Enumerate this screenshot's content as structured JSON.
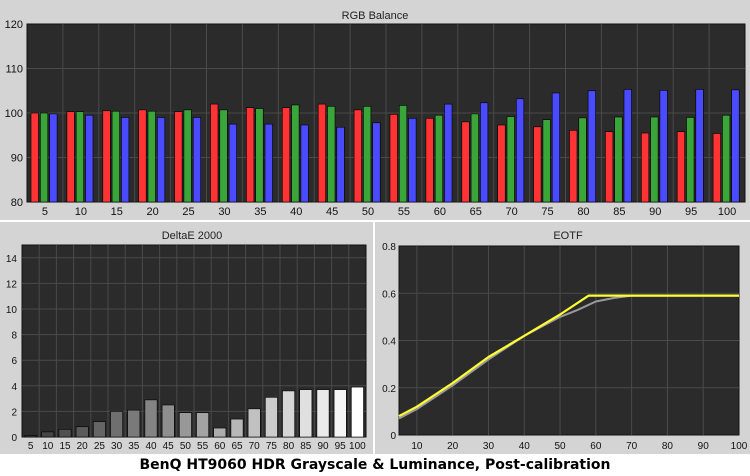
{
  "caption": "BenQ HT9060 HDR Grayscale & Luminance, Post-calibration",
  "colors": {
    "red": "#ff3333",
    "green": "#3aa63a",
    "blue": "#4a4aff",
    "plot_bg": "#2b2b2b",
    "eotf_target": "#9a9a9a",
    "eotf_measured": "#ffff33"
  },
  "chart_data": [
    {
      "type": "bar",
      "title": "RGB Balance",
      "categories": [
        "5",
        "10",
        "15",
        "20",
        "25",
        "30",
        "35",
        "40",
        "45",
        "50",
        "55",
        "60",
        "65",
        "70",
        "75",
        "80",
        "85",
        "90",
        "95",
        "100"
      ],
      "ylim": [
        80,
        120
      ],
      "yticks": [
        "80",
        "90",
        "100",
        "110",
        "120"
      ],
      "grid": true,
      "series": [
        {
          "color": "red",
          "values": [
            100.0,
            100.3,
            100.5,
            100.7,
            100.3,
            102.0,
            101.2,
            101.2,
            102.0,
            100.7,
            99.7,
            98.8,
            98.0,
            97.3,
            96.9,
            96.1,
            95.8,
            95.5,
            95.8,
            95.4
          ]
        },
        {
          "color": "green",
          "values": [
            100.0,
            100.3,
            100.4,
            100.4,
            100.7,
            100.7,
            101.0,
            101.8,
            101.5,
            101.5,
            101.7,
            99.5,
            99.8,
            99.2,
            98.5,
            98.9,
            99.1,
            99.1,
            99.0,
            99.5
          ]
        },
        {
          "color": "blue",
          "values": [
            99.8,
            99.5,
            99.0,
            99.0,
            99.0,
            97.5,
            97.5,
            97.3,
            96.8,
            97.8,
            98.8,
            102.0,
            102.3,
            103.2,
            104.5,
            105.0,
            105.3,
            105.1,
            105.3,
            105.2
          ]
        }
      ]
    },
    {
      "type": "bar",
      "title": "DeltaE 2000",
      "categories": [
        "5",
        "10",
        "15",
        "20",
        "25",
        "30",
        "35",
        "40",
        "45",
        "50",
        "55",
        "60",
        "65",
        "70",
        "75",
        "80",
        "85",
        "90",
        "95",
        "100"
      ],
      "ylim": [
        0,
        15
      ],
      "yticks": [
        "0",
        "2",
        "4",
        "6",
        "8",
        "10",
        "12",
        "14"
      ],
      "grid": true,
      "values": [
        0.1,
        0.4,
        0.6,
        0.8,
        1.2,
        2.0,
        2.1,
        2.9,
        2.5,
        1.9,
        1.9,
        0.7,
        1.4,
        2.2,
        3.1,
        3.6,
        3.7,
        3.7,
        3.7,
        3.9
      ]
    },
    {
      "type": "line",
      "title": "EOTF",
      "xlim": [
        5,
        100
      ],
      "ylim": [
        0,
        0.8
      ],
      "xticks": [
        "10",
        "20",
        "30",
        "40",
        "50",
        "60",
        "70",
        "80",
        "90",
        "100"
      ],
      "yticks": [
        "0",
        "0.2",
        "0.4",
        "0.6",
        "0.8"
      ],
      "grid": true,
      "series": [
        {
          "color": "eotf_target",
          "x": [
            5,
            10,
            20,
            30,
            40,
            50,
            55,
            60,
            65,
            70,
            80,
            90,
            100
          ],
          "y": [
            0.07,
            0.11,
            0.21,
            0.32,
            0.42,
            0.5,
            0.53,
            0.565,
            0.58,
            0.59,
            0.59,
            0.59,
            0.59
          ]
        },
        {
          "color": "eotf_measured",
          "x": [
            5,
            10,
            20,
            30,
            40,
            50,
            58,
            60,
            70,
            80,
            90,
            100
          ],
          "y": [
            0.08,
            0.12,
            0.22,
            0.33,
            0.42,
            0.51,
            0.59,
            0.59,
            0.59,
            0.59,
            0.59,
            0.59
          ]
        }
      ]
    }
  ]
}
